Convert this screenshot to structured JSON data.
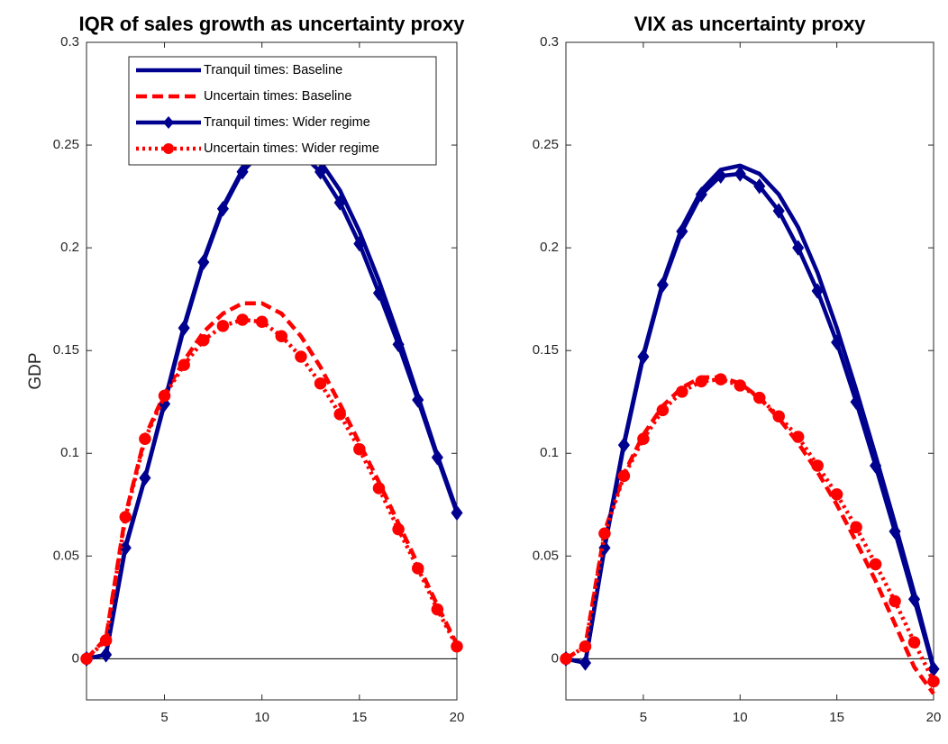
{
  "chart_data": [
    {
      "type": "line",
      "title": "IQR of sales growth as uncertainty proxy",
      "ylabel": "GDP",
      "x": [
        1,
        2,
        3,
        4,
        5,
        6,
        7,
        8,
        9,
        10,
        11,
        12,
        13,
        14,
        15,
        16,
        17,
        18,
        19,
        20
      ],
      "xlim": [
        1,
        20
      ],
      "xticks": [
        5,
        10,
        15,
        20
      ],
      "ylim": [
        -0.02,
        0.3
      ],
      "yticks": [
        0,
        0.05,
        0.1,
        0.15,
        0.2,
        0.25,
        0.3
      ],
      "hline": 0,
      "legend": "northwest",
      "series": [
        {
          "name": "Tranquil times: Baseline",
          "color": "#00008f",
          "style": "solid",
          "marker": "none",
          "values": [
            0,
            0.002,
            0.055,
            0.088,
            0.125,
            0.162,
            0.194,
            0.22,
            0.238,
            0.249,
            0.252,
            0.25,
            0.242,
            0.228,
            0.208,
            0.184,
            0.157,
            0.128,
            0.099,
            0.072
          ]
        },
        {
          "name": "Uncertain times: Baseline",
          "color": "#ff0000",
          "style": "dashed",
          "marker": "none",
          "values": [
            0,
            0.01,
            0.07,
            0.108,
            0.129,
            0.145,
            0.159,
            0.168,
            0.173,
            0.173,
            0.168,
            0.157,
            0.142,
            0.124,
            0.105,
            0.086,
            0.066,
            0.046,
            0.026,
            0.007
          ]
        },
        {
          "name": "Tranquil times: Wider regime",
          "color": "#00008f",
          "style": "solid",
          "marker": "diamond",
          "values": [
            0,
            0.002,
            0.054,
            0.088,
            0.124,
            0.161,
            0.193,
            0.219,
            0.237,
            0.247,
            0.249,
            0.246,
            0.237,
            0.222,
            0.202,
            0.178,
            0.153,
            0.126,
            0.098,
            0.071
          ]
        },
        {
          "name": "Uncertain times: Wider regime",
          "color": "#ff0000",
          "style": "dotted",
          "marker": "circle",
          "values": [
            0,
            0.009,
            0.069,
            0.107,
            0.128,
            0.143,
            0.155,
            0.162,
            0.165,
            0.164,
            0.157,
            0.147,
            0.134,
            0.119,
            0.102,
            0.083,
            0.063,
            0.044,
            0.024,
            0.006
          ]
        }
      ]
    },
    {
      "type": "line",
      "title": "VIX as uncertainty proxy",
      "x": [
        1,
        2,
        3,
        4,
        5,
        6,
        7,
        8,
        9,
        10,
        11,
        12,
        13,
        14,
        15,
        16,
        17,
        18,
        19,
        20
      ],
      "xlim": [
        1,
        20
      ],
      "xticks": [
        5,
        10,
        15,
        20
      ],
      "ylim": [
        -0.02,
        0.3
      ],
      "yticks": [
        0,
        0.05,
        0.1,
        0.15,
        0.2,
        0.25,
        0.3
      ],
      "hline": 0,
      "series": [
        {
          "color": "#00008f",
          "style": "solid",
          "marker": "none",
          "values": [
            0,
            -0.002,
            0.055,
            0.105,
            0.148,
            0.183,
            0.21,
            0.228,
            0.238,
            0.24,
            0.236,
            0.226,
            0.21,
            0.188,
            0.161,
            0.131,
            0.099,
            0.066,
            0.032,
            -0.004
          ]
        },
        {
          "color": "#ff0000",
          "style": "dashed",
          "marker": "none",
          "values": [
            0,
            0.006,
            0.062,
            0.09,
            0.109,
            0.123,
            0.132,
            0.137,
            0.137,
            0.134,
            0.127,
            0.117,
            0.105,
            0.091,
            0.075,
            0.057,
            0.038,
            0.017,
            -0.004,
            -0.017
          ]
        },
        {
          "color": "#00008f",
          "style": "solid",
          "marker": "diamond",
          "values": [
            0,
            -0.002,
            0.054,
            0.104,
            0.147,
            0.182,
            0.208,
            0.226,
            0.235,
            0.236,
            0.23,
            0.218,
            0.2,
            0.179,
            0.154,
            0.125,
            0.094,
            0.062,
            0.029,
            -0.005
          ]
        },
        {
          "color": "#ff0000",
          "style": "dotted",
          "marker": "circle",
          "values": [
            0,
            0.006,
            0.061,
            0.089,
            0.107,
            0.121,
            0.13,
            0.135,
            0.136,
            0.133,
            0.127,
            0.118,
            0.108,
            0.094,
            0.08,
            0.064,
            0.046,
            0.028,
            0.008,
            -0.011
          ]
        }
      ]
    }
  ]
}
